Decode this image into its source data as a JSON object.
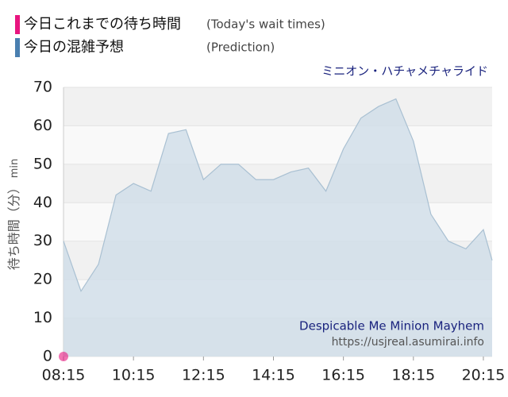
{
  "chart_data": {
    "type": "area",
    "ride_name": "ミニオン・ハチャメチャライド",
    "ylabel": "待ち時間（分）",
    "ylabel_unit": "min",
    "watermark_title": "Despicable Me Minion Mayhem",
    "watermark_url": "https://usjreal.asumirai.info",
    "x": [
      "08:15",
      "08:45",
      "09:15",
      "09:45",
      "10:15",
      "10:45",
      "11:15",
      "11:45",
      "12:15",
      "12:45",
      "13:15",
      "13:45",
      "14:15",
      "14:45",
      "15:15",
      "15:45",
      "16:15",
      "16:45",
      "17:15",
      "17:45",
      "18:15",
      "18:45",
      "19:15",
      "19:45",
      "20:15",
      "20:30"
    ],
    "series": [
      {
        "name": "今日これまでの待ち時間",
        "name_en": "(Today's wait times)",
        "color": "#e8157f",
        "values": [
          0,
          null,
          null,
          null,
          null,
          null,
          null,
          null,
          null,
          null,
          null,
          null,
          null,
          null,
          null,
          null,
          null,
          null,
          null,
          null,
          null,
          null,
          null,
          null,
          null,
          null
        ]
      },
      {
        "name": "今日の混雑予想",
        "name_en": "(Prediction)",
        "color": "#4a7fb0",
        "values": [
          30,
          17,
          24,
          42,
          45,
          43,
          58,
          59,
          46,
          50,
          50,
          46,
          46,
          48,
          49,
          43,
          54,
          62,
          65,
          67,
          56,
          37,
          30,
          28,
          33,
          25
        ]
      }
    ],
    "xlim": [
      "08:15",
      "20:30"
    ],
    "xticks": [
      "08:15",
      "10:15",
      "12:15",
      "14:15",
      "16:15",
      "18:15",
      "20:15"
    ],
    "ylim": [
      0,
      70
    ],
    "yticks": [
      0,
      10,
      20,
      30,
      40,
      50,
      60,
      70
    ],
    "grid": true
  }
}
